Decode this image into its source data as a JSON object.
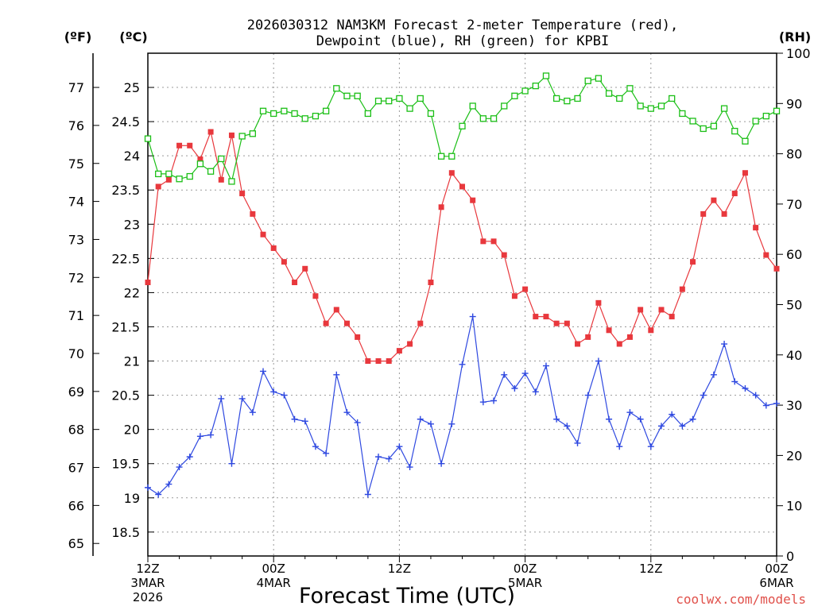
{
  "chart_data": {
    "type": "line",
    "title_line1": "2026030312 NAM3KM Forecast 2-meter Temperature (red),",
    "title_line2": "Dewpoint (blue), RH (green) for KPBI",
    "xlabel": "Forecast Time (UTC)",
    "credit": "coolwx.com/models",
    "x_hours_range": [
      0,
      60
    ],
    "x_ticks": [
      {
        "hour": 0,
        "label": "12Z",
        "sub1": "3MAR",
        "sub2": "2026"
      },
      {
        "hour": 12,
        "label": "00Z",
        "sub1": "4MAR",
        "sub2": ""
      },
      {
        "hour": 24,
        "label": "12Z",
        "sub1": "",
        "sub2": ""
      },
      {
        "hour": 36,
        "label": "00Z",
        "sub1": "5MAR",
        "sub2": ""
      },
      {
        "hour": 48,
        "label": "12Z",
        "sub1": "",
        "sub2": ""
      },
      {
        "hour": 60,
        "label": "00Z",
        "sub1": "6MAR",
        "sub2": ""
      }
    ],
    "axis_left_f": {
      "unit": "(ºF)",
      "ticks": [
        65,
        66,
        67,
        68,
        69,
        70,
        71,
        72,
        73,
        74,
        75,
        76,
        77
      ]
    },
    "axis_left_c": {
      "unit": "(ºC)",
      "ylim": [
        18.15,
        25.5
      ],
      "ticks": [
        "18.5",
        "19",
        "19.5",
        "20",
        "20.5",
        "21",
        "21.5",
        "22",
        "22.5",
        "23",
        "23.5",
        "24",
        "24.5",
        "25"
      ]
    },
    "axis_right_rh": {
      "unit": "(RH)",
      "ylim": [
        0,
        100
      ],
      "ticks": [
        0,
        10,
        20,
        30,
        40,
        50,
        60,
        70,
        80,
        90,
        100
      ]
    },
    "series": [
      {
        "name": "Temperature",
        "units": "C",
        "color": "#e8383d",
        "marker": "filled-square",
        "values": [
          22.15,
          23.55,
          23.65,
          24.15,
          24.15,
          23.95,
          24.35,
          23.65,
          24.3,
          23.45,
          23.15,
          22.85,
          22.65,
          22.45,
          22.15,
          22.35,
          21.95,
          21.55,
          21.75,
          21.55,
          21.35,
          21.0,
          21.0,
          21.0,
          21.15,
          21.25,
          21.55,
          22.15,
          23.25,
          23.75,
          23.55,
          23.35,
          22.75,
          22.75,
          22.55,
          21.95,
          22.05,
          21.65,
          21.65,
          21.55,
          21.55,
          21.25,
          21.35,
          21.85,
          21.45,
          21.25,
          21.35,
          21.75,
          21.45,
          21.75,
          21.65,
          22.05,
          22.45,
          23.15,
          23.35,
          23.15,
          23.45,
          23.75,
          22.95,
          22.55,
          22.35
        ]
      },
      {
        "name": "Dewpoint",
        "units": "C",
        "color": "#2e48e0",
        "marker": "plus",
        "values": [
          19.15,
          19.05,
          19.2,
          19.45,
          19.6,
          19.9,
          19.92,
          20.45,
          19.5,
          20.45,
          20.25,
          20.85,
          20.55,
          20.5,
          20.15,
          20.12,
          19.75,
          19.65,
          20.8,
          20.25,
          20.1,
          19.05,
          19.6,
          19.57,
          19.75,
          19.45,
          20.15,
          20.08,
          19.5,
          20.08,
          20.95,
          21.65,
          20.4,
          20.42,
          20.8,
          20.6,
          20.82,
          20.55,
          20.93,
          20.15,
          20.05,
          19.8,
          20.5,
          21.0,
          20.15,
          19.75,
          20.25,
          20.15,
          19.75,
          20.05,
          20.22,
          20.05,
          20.15,
          20.5,
          20.8,
          21.25,
          20.7,
          20.6,
          20.5,
          20.35,
          20.38
        ]
      },
      {
        "name": "RH",
        "units": "%",
        "color": "#1bbf16",
        "marker": "open-square",
        "values": [
          83,
          76,
          76,
          75,
          75.5,
          78,
          76.5,
          79,
          74.5,
          83.5,
          84,
          88.5,
          88,
          88.5,
          88,
          87,
          87.5,
          88.5,
          93,
          91.5,
          91.5,
          88,
          90.5,
          90.5,
          91,
          89,
          91,
          88,
          79.5,
          79.5,
          85.5,
          89.5,
          87,
          87,
          89.5,
          91.5,
          92.5,
          93.5,
          95.5,
          91,
          90.5,
          91,
          94.5,
          95,
          92,
          91,
          93,
          89.5,
          89,
          89.5,
          91,
          88,
          86.5,
          85,
          85.5,
          89,
          84.5,
          82.5,
          86.5,
          87.5,
          88.5
        ]
      }
    ]
  }
}
